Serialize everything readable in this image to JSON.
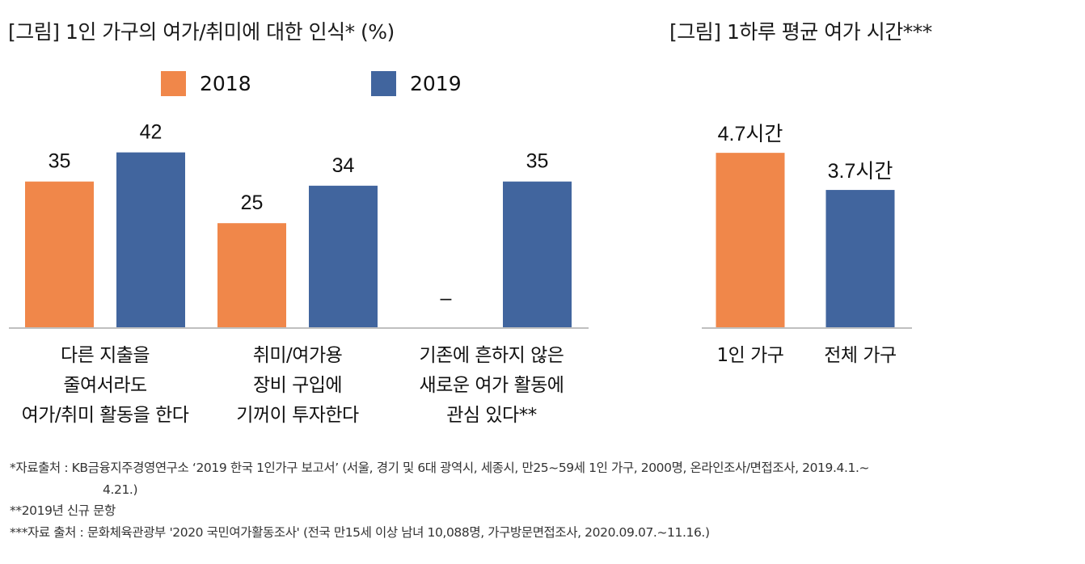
{
  "colors": {
    "series_2018": "#f0874a",
    "series_2019": "#41659e",
    "axis": "#bfbfbf"
  },
  "chart_data": [
    {
      "type": "bar",
      "title": "[그림] 1인 가구의 여가/취미에 대한 인식* (%)",
      "categories": [
        [
          "다른 지출을",
          "줄여서라도",
          "여가/취미 활동을 한다"
        ],
        [
          "취미/여가용",
          "장비 구입에",
          "기꺼이 투자한다"
        ],
        [
          "기존에 흔하지 않은",
          "새로운 여가 활동에",
          "관심 있다**"
        ]
      ],
      "series": [
        {
          "name": "2018",
          "values": [
            35,
            25,
            null
          ],
          "labels": [
            "35",
            "25",
            "–"
          ]
        },
        {
          "name": "2019",
          "values": [
            42,
            34,
            35
          ],
          "labels": [
            "42",
            "34",
            "35"
          ]
        }
      ],
      "legend": "top",
      "xlabel": "",
      "ylabel": "",
      "ylim": [
        0,
        46
      ],
      "grid": false
    },
    {
      "type": "bar",
      "title": "[그림] 1하루 평균 여가 시간***",
      "categories": [
        "1인 가구",
        "전체 가구"
      ],
      "values": [
        4.7,
        3.7
      ],
      "labels": [
        "4.7시간",
        "3.7시간"
      ],
      "xlabel": "",
      "ylabel": "",
      "ylim": [
        0,
        5.4
      ],
      "grid": false
    }
  ],
  "notes": [
    "*자료출처 : KB금융지주경영연구소 ‘2019 한국 1인가구 보고서’ (서울, 경기 및 6대 광역시, 세종시, 만25~59세 1인 가구, 2000명, 온라인조사/면접조사, 2019.4.1.~",
    "4.21.)",
    "**2019년 신규 문항",
    "***자료 출처 : 문화체육관광부 '2020 국민여가활동조사' (전국 만15세 이상 남녀 10,088명, 가구방문면접조사, 2020.09.07.~11.16.)"
  ]
}
